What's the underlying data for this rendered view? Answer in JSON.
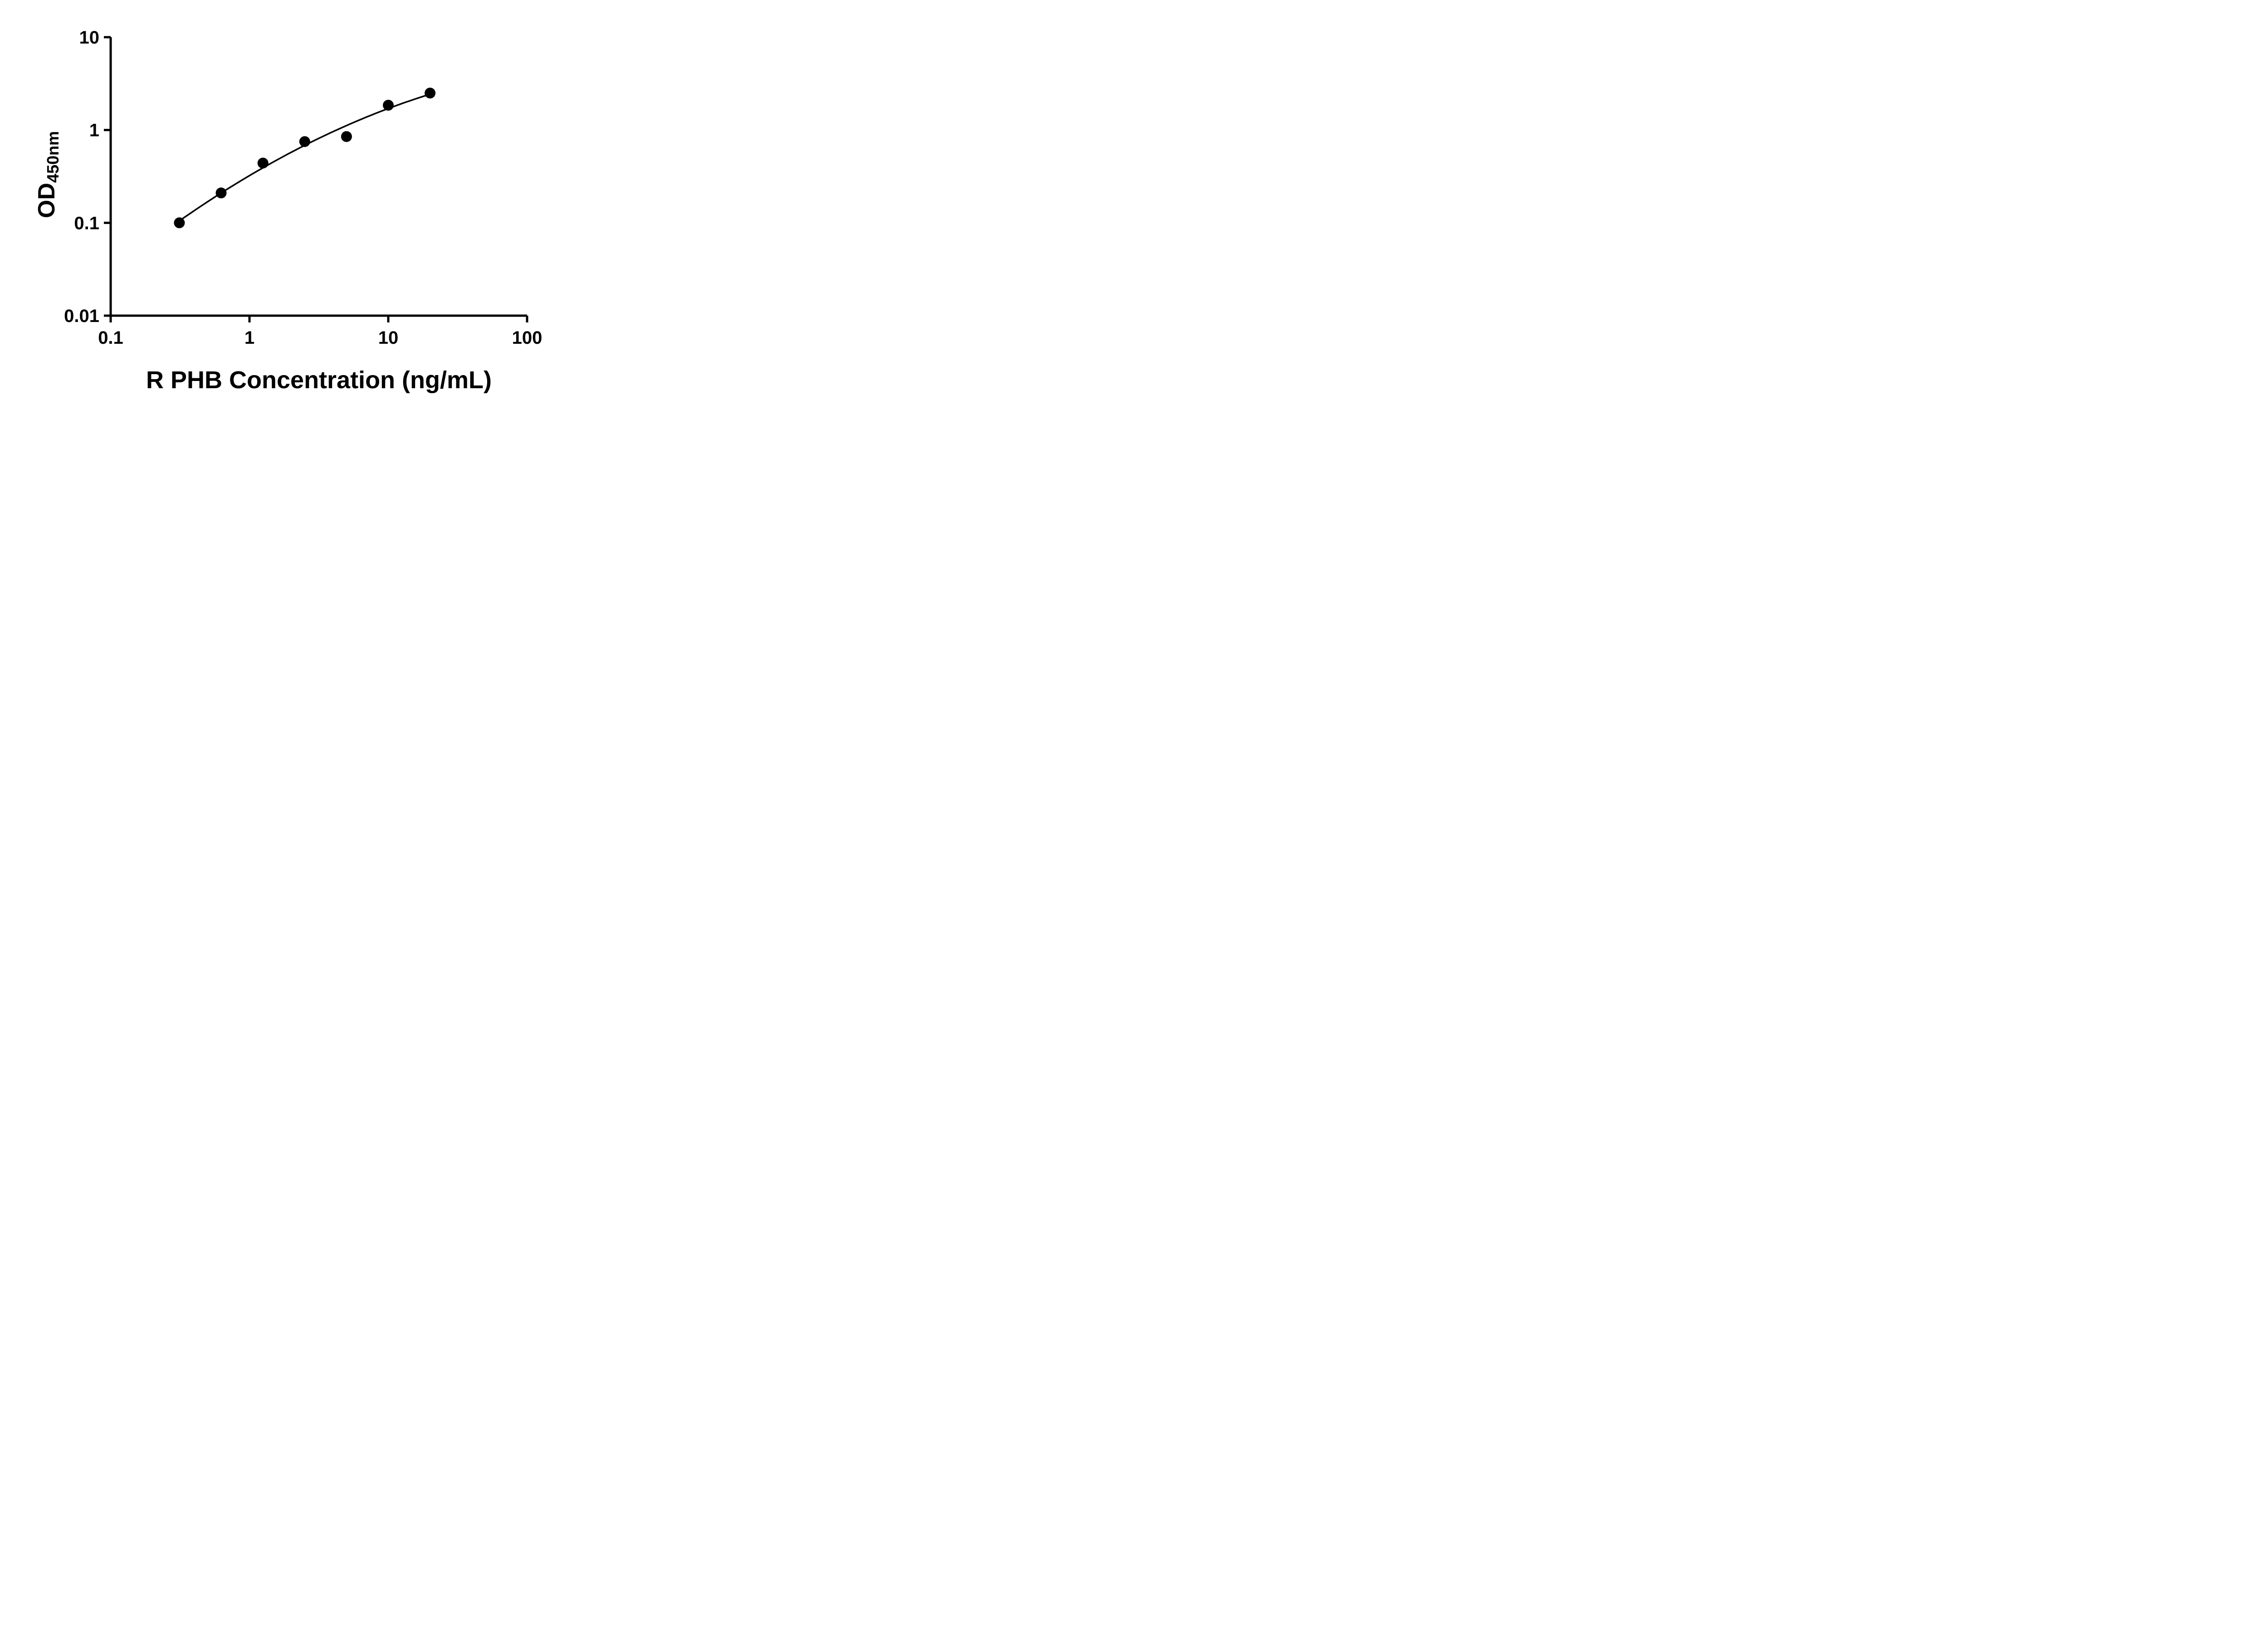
{
  "chart_data": {
    "type": "scatter",
    "title": "",
    "xlabel": "R PHB Concentration (ng/mL)",
    "ylabel_main": "OD",
    "ylabel_sub": "450nm",
    "x_scale": "log",
    "y_scale": "log",
    "xlim": [
      0.1,
      100
    ],
    "ylim": [
      0.01,
      10
    ],
    "grid": false,
    "legend": "none",
    "x_ticks": [
      {
        "value": 0.1,
        "label": "0.1"
      },
      {
        "value": 1,
        "label": "1"
      },
      {
        "value": 10,
        "label": "10"
      },
      {
        "value": 100,
        "label": "100"
      }
    ],
    "y_ticks": [
      {
        "value": 0.01,
        "label": "0.01"
      },
      {
        "value": 0.1,
        "label": "0.1"
      },
      {
        "value": 1,
        "label": "1"
      },
      {
        "value": 10,
        "label": "10"
      }
    ],
    "series": [
      {
        "name": "standard-curve",
        "marker": "circle",
        "fit": "quadratic-loglog",
        "points": [
          {
            "x": 0.3125,
            "y": 0.1
          },
          {
            "x": 0.625,
            "y": 0.21
          },
          {
            "x": 1.25,
            "y": 0.44
          },
          {
            "x": 2.5,
            "y": 0.75
          },
          {
            "x": 5,
            "y": 0.85
          },
          {
            "x": 10,
            "y": 1.85
          },
          {
            "x": 20,
            "y": 2.5
          }
        ]
      }
    ],
    "colors": {
      "axis": "#000000",
      "marker": "#000000",
      "line": "#000000",
      "background": "#ffffff"
    }
  }
}
